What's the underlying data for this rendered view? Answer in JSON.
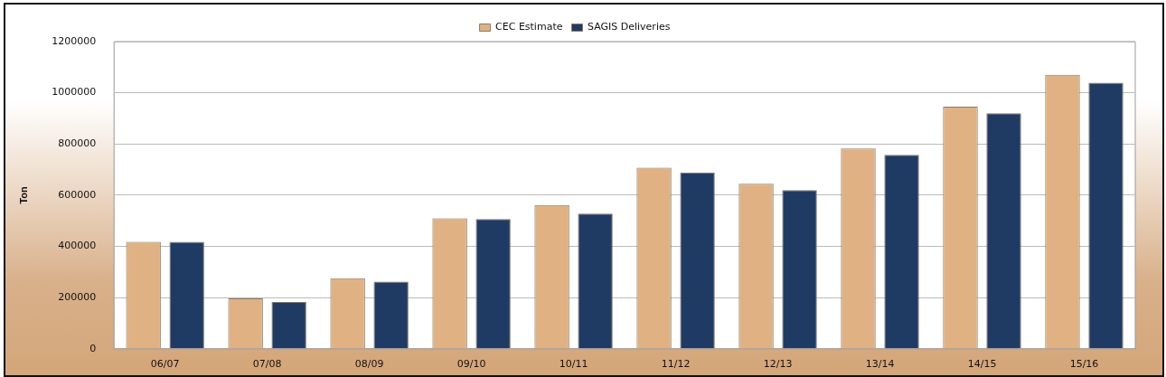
{
  "chart_data": {
    "type": "bar",
    "ylabel": "Ton",
    "categories": [
      "06/07",
      "07/08",
      "08/09",
      "09/10",
      "10/11",
      "11/12",
      "12/13",
      "13/14",
      "14/15",
      "15/16"
    ],
    "series": [
      {
        "name": "CEC Estimate",
        "color": "#e0b283",
        "values": [
          418000,
          197000,
          276000,
          510000,
          562000,
          707000,
          645000,
          782000,
          946000,
          1070000
        ]
      },
      {
        "name": "SAGIS Deliveries",
        "color": "#1f3b63",
        "values": [
          418000,
          183000,
          262000,
          507000,
          528000,
          689000,
          620000,
          758000,
          920000,
          1039000
        ]
      }
    ],
    "ylim": [
      0,
      1200000
    ],
    "yticks": [
      0,
      200000,
      400000,
      600000,
      800000,
      1000000,
      1200000
    ],
    "grid": "y",
    "legend": "top"
  }
}
